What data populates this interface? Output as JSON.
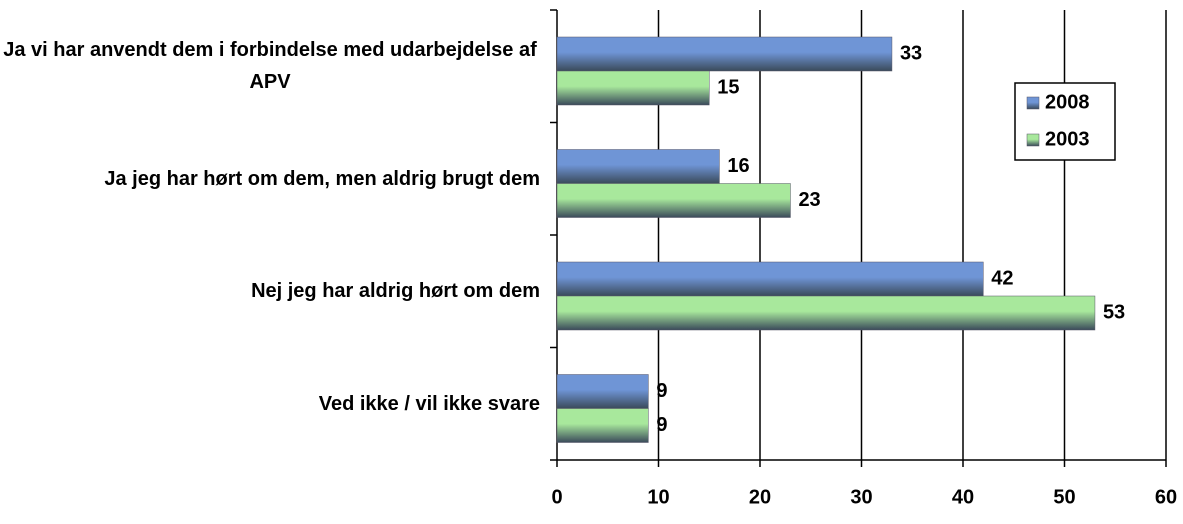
{
  "chart_data": {
    "type": "bar",
    "orientation": "horizontal",
    "categories": [
      "Ja vi har anvendt dem i forbindelse med udarbejdelse af APV",
      "Ja jeg har hørt om dem, men aldrig brugt dem",
      "Nej jeg har aldrig hørt om dem",
      "Ved ikke / vil ikke svare"
    ],
    "series": [
      {
        "name": "2008",
        "color": "#6f95d6",
        "values": [
          33,
          16,
          42,
          9
        ]
      },
      {
        "name": "2003",
        "color": "#a8e89c",
        "values": [
          15,
          23,
          53,
          9
        ]
      }
    ],
    "xlim": [
      0,
      60
    ],
    "xticks": [
      0,
      10,
      20,
      30,
      40,
      50,
      60
    ],
    "grid": true,
    "legend": "upper right"
  }
}
